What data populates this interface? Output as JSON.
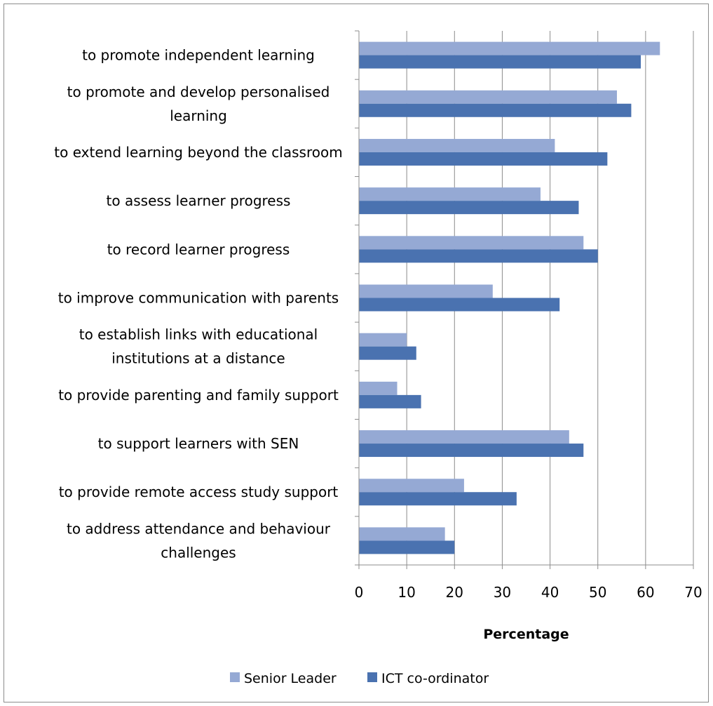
{
  "chart_data": {
    "type": "bar",
    "orientation": "horizontal",
    "categories": [
      "to promote independent learning",
      "to promote and develop personalised learning",
      "to extend learning beyond the classroom",
      "to assess learner progress",
      "to record learner progress",
      "to improve communication with parents",
      "to establish links with educational institutions at a distance",
      "to provide parenting and family support",
      "to support learners with SEN",
      "to provide remote access study support",
      "to address attendance and behaviour challenges"
    ],
    "category_lines": [
      [
        "to promote independent learning"
      ],
      [
        "to promote and develop personalised",
        "learning"
      ],
      [
        "to extend learning beyond the classroom"
      ],
      [
        "to assess learner progress"
      ],
      [
        "to record learner progress"
      ],
      [
        "to improve communication with parents"
      ],
      [
        "to establish links with educational",
        "institutions at a distance"
      ],
      [
        "to provide parenting and family support"
      ],
      [
        "to support learners with SEN"
      ],
      [
        "to provide remote access study support"
      ],
      [
        "to address attendance and behaviour",
        "challenges"
      ]
    ],
    "series": [
      {
        "name": "Senior Leader",
        "color": "#95a9d4",
        "values": [
          63,
          54,
          41,
          38,
          47,
          28,
          10,
          8,
          44,
          22,
          18
        ]
      },
      {
        "name": "ICT co-ordinator",
        "color": "#4a72b0",
        "values": [
          59,
          57,
          52,
          46,
          50,
          42,
          12,
          13,
          47,
          33,
          20
        ]
      }
    ],
    "xlim": [
      0,
      70
    ],
    "xticks": [
      0,
      10,
      20,
      30,
      40,
      50,
      60,
      70
    ],
    "xlabel": "Percentage",
    "ylabel": "",
    "title": "",
    "grid": "vertical",
    "legend_position": "bottom"
  }
}
